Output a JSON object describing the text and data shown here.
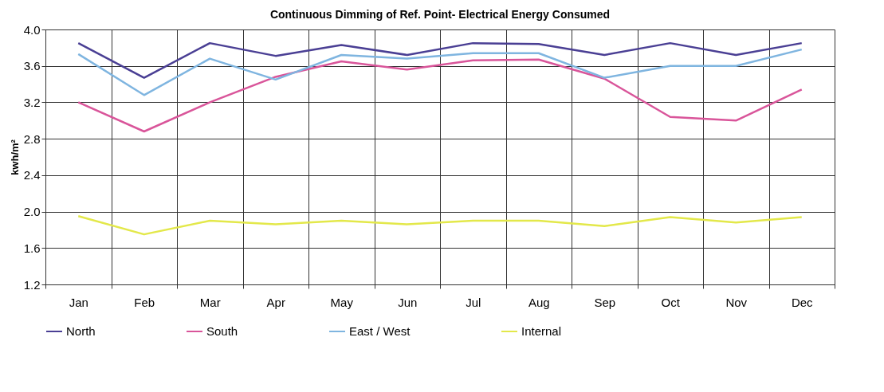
{
  "chart_data": {
    "type": "line",
    "title": "Continuous Dimming of Ref. Point- Electrical Energy Consumed",
    "ylabel": "kwh/m²",
    "categories": [
      "Jan",
      "Feb",
      "Mar",
      "Apr",
      "May",
      "Jun",
      "Jul",
      "Aug",
      "Sep",
      "Oct",
      "Nov",
      "Dec"
    ],
    "series": [
      {
        "name": "North",
        "color": "#4a3f94",
        "values": [
          3.85,
          3.47,
          3.85,
          3.71,
          3.83,
          3.72,
          3.85,
          3.84,
          3.72,
          3.85,
          3.72,
          3.85
        ]
      },
      {
        "name": "South",
        "color": "#d9559a",
        "values": [
          3.2,
          2.88,
          3.2,
          3.48,
          3.65,
          3.56,
          3.66,
          3.67,
          3.46,
          3.04,
          3.0,
          3.34
        ]
      },
      {
        "name": "East / West",
        "color": "#7fb5e0",
        "values": [
          3.73,
          3.28,
          3.68,
          3.45,
          3.72,
          3.68,
          3.74,
          3.74,
          3.47,
          3.6,
          3.6,
          3.78
        ]
      },
      {
        "name": "Internal",
        "color": "#e3e84a",
        "values": [
          1.95,
          1.75,
          1.9,
          1.86,
          1.9,
          1.86,
          1.9,
          1.9,
          1.84,
          1.94,
          1.88,
          1.94
        ]
      }
    ],
    "ylim": [
      1.2,
      4.0
    ],
    "yticks": [
      {
        "value": 1.2,
        "label": "1.2"
      },
      {
        "value": 1.6,
        "label": "1.6"
      },
      {
        "value": 2.0,
        "label": "2.0"
      },
      {
        "value": 2.4,
        "label": "2.4"
      },
      {
        "value": 2.8,
        "label": "2.8"
      },
      {
        "value": 3.2,
        "label": "3.2"
      },
      {
        "value": 3.6,
        "label": "3.6"
      },
      {
        "value": 4.0,
        "label": "4.0"
      }
    ],
    "grid": true,
    "legend": "bottom",
    "marker": "none",
    "line_style": "solid"
  }
}
